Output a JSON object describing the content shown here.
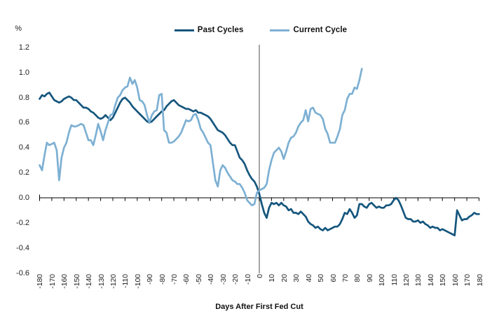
{
  "unit_label": "%",
  "axis_color": "#000000",
  "vline_color": "#808080",
  "chart_data": {
    "type": "line",
    "xlabel": "Days After First Fed Cut",
    "ylabel": "%",
    "xlim": [
      -185,
      183
    ],
    "ylim": [
      -0.6,
      1.2
    ],
    "grid": false,
    "legend_position": "top-center",
    "vline_x": 0,
    "x_ticks": [
      -180,
      -170,
      -160,
      -150,
      -140,
      -130,
      -120,
      -110,
      -100,
      -90,
      -80,
      -70,
      -60,
      -50,
      -40,
      -30,
      -20,
      -10,
      0,
      10,
      20,
      30,
      40,
      50,
      60,
      70,
      80,
      90,
      100,
      110,
      120,
      130,
      140,
      150,
      160,
      170,
      180
    ],
    "y_tick_labels": [
      "1.2",
      "1.0",
      "0.8",
      "0.6",
      "0.4",
      "0.2",
      "0.0",
      "-0.2",
      "-0.4",
      "-0.6"
    ],
    "series": [
      {
        "name": "Past Cycles",
        "color": "#15567D",
        "x_start": -180,
        "x_step": 2,
        "values": [
          0.79,
          0.82,
          0.81,
          0.83,
          0.84,
          0.81,
          0.78,
          0.77,
          0.76,
          0.77,
          0.79,
          0.8,
          0.81,
          0.8,
          0.78,
          0.78,
          0.76,
          0.74,
          0.72,
          0.72,
          0.71,
          0.69,
          0.68,
          0.66,
          0.64,
          0.63,
          0.64,
          0.66,
          0.64,
          0.62,
          0.64,
          0.68,
          0.72,
          0.76,
          0.79,
          0.8,
          0.78,
          0.76,
          0.73,
          0.71,
          0.69,
          0.67,
          0.65,
          0.63,
          0.61,
          0.6,
          0.61,
          0.63,
          0.65,
          0.67,
          0.69,
          0.7,
          0.73,
          0.75,
          0.77,
          0.78,
          0.76,
          0.74,
          0.73,
          0.72,
          0.71,
          0.71,
          0.7,
          0.69,
          0.7,
          0.68,
          0.68,
          0.67,
          0.66,
          0.65,
          0.63,
          0.6,
          0.57,
          0.54,
          0.53,
          0.52,
          0.5,
          0.47,
          0.44,
          0.42,
          0.42,
          0.37,
          0.32,
          0.3,
          0.27,
          0.22,
          0.18,
          0.15,
          0.13,
          0.09,
          0.03,
          -0.05,
          -0.12,
          -0.16,
          -0.08,
          -0.04,
          -0.05,
          -0.04,
          -0.06,
          -0.04,
          -0.06,
          -0.07,
          -0.1,
          -0.09,
          -0.12,
          -0.12,
          -0.13,
          -0.11,
          -0.13,
          -0.15,
          -0.19,
          -0.21,
          -0.22,
          -0.24,
          -0.23,
          -0.25,
          -0.26,
          -0.24,
          -0.26,
          -0.25,
          -0.24,
          -0.23,
          -0.23,
          -0.21,
          -0.17,
          -0.12,
          -0.13,
          -0.09,
          -0.12,
          -0.16,
          -0.14,
          -0.05,
          -0.05,
          -0.07,
          -0.08,
          -0.05,
          -0.04,
          -0.06,
          -0.08,
          -0.07,
          -0.08,
          -0.08,
          -0.06,
          -0.06,
          -0.05,
          -0.02,
          0.0,
          -0.02,
          -0.06,
          -0.11,
          -0.16,
          -0.17,
          -0.17,
          -0.19,
          -0.19,
          -0.18,
          -0.2,
          -0.19,
          -0.21,
          -0.22,
          -0.24,
          -0.23,
          -0.24,
          -0.24,
          -0.26,
          -0.25,
          -0.26,
          -0.27,
          -0.28,
          -0.29,
          -0.3,
          -0.1,
          -0.14,
          -0.18,
          -0.17,
          -0.17,
          -0.15,
          -0.14,
          -0.12,
          -0.13,
          -0.13
        ]
      },
      {
        "name": "Current Cycle",
        "color": "#7DB0D3",
        "x_start": -180,
        "x_step": 2,
        "values": [
          0.26,
          0.22,
          0.34,
          0.44,
          0.42,
          0.43,
          0.44,
          0.38,
          0.14,
          0.32,
          0.4,
          0.44,
          0.52,
          0.58,
          0.57,
          0.57,
          0.58,
          0.59,
          0.58,
          0.52,
          0.46,
          0.46,
          0.42,
          0.5,
          0.59,
          0.53,
          0.46,
          0.54,
          0.6,
          0.66,
          0.67,
          0.74,
          0.8,
          0.82,
          0.86,
          0.88,
          0.89,
          0.96,
          0.91,
          0.94,
          0.88,
          0.78,
          0.77,
          0.74,
          0.66,
          0.6,
          0.66,
          0.69,
          0.7,
          0.82,
          0.83,
          0.54,
          0.52,
          0.44,
          0.44,
          0.45,
          0.47,
          0.49,
          0.52,
          0.57,
          0.62,
          0.61,
          0.62,
          0.66,
          0.67,
          0.62,
          0.55,
          0.52,
          0.48,
          0.44,
          0.42,
          0.28,
          0.14,
          0.09,
          0.22,
          0.26,
          0.24,
          0.2,
          0.17,
          0.14,
          0.13,
          0.11,
          0.11,
          0.08,
          0.04,
          -0.02,
          -0.04,
          -0.06,
          -0.05,
          0.04,
          0.06,
          0.07,
          0.08,
          0.11,
          0.22,
          0.3,
          0.36,
          0.38,
          0.4,
          0.37,
          0.31,
          0.37,
          0.44,
          0.48,
          0.49,
          0.52,
          0.57,
          0.6,
          0.62,
          0.7,
          0.61,
          0.71,
          0.72,
          0.68,
          0.67,
          0.66,
          0.63,
          0.55,
          0.51,
          0.44,
          0.44,
          0.44,
          0.49,
          0.55,
          0.66,
          0.7,
          0.79,
          0.83,
          0.83,
          0.88,
          0.87,
          0.94,
          1.03
        ]
      }
    ]
  }
}
